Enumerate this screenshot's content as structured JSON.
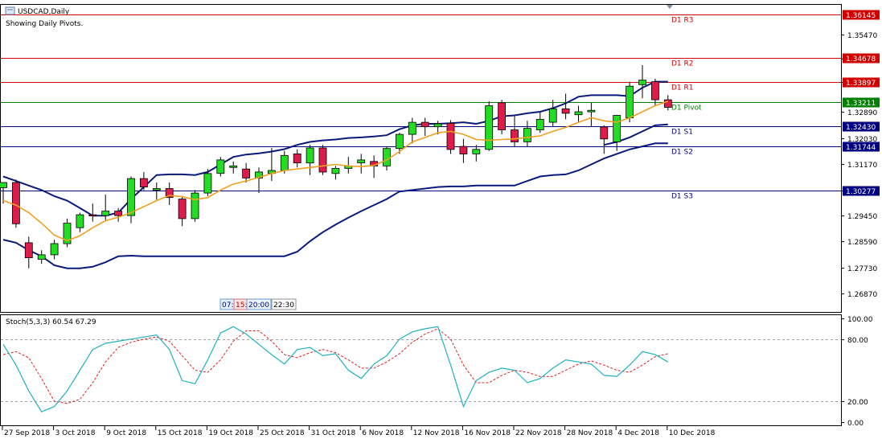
{
  "header": {
    "symbol_title": "USDCAD,Daily",
    "subtitle": "Showing Daily Pivots."
  },
  "time_tags": [
    "07:",
    "15:",
    "20:00",
    "22:30"
  ],
  "indicator": {
    "label": "Stoch(5,3,3) 60.54 67.29",
    "axis_labels": [
      "100.00",
      "80.00",
      "20.00",
      "0.00"
    ],
    "levels": [
      80,
      20
    ],
    "colors": {
      "main": "#20b2c0",
      "signal": "#e02020",
      "levels": "#a0a0a0"
    }
  },
  "chart_data": [
    {
      "type": "candlestick",
      "symbol": "USDCAD",
      "timeframe": "Daily",
      "ylim": [
        1.2625,
        1.3648
      ],
      "y_ticks": [
        "1.35470",
        "1.34670",
        "1.33897",
        "1.32890",
        "1.32030",
        "1.31170",
        "1.30277",
        "1.29450",
        "1.28590",
        "1.27730",
        "1.26870"
      ],
      "x_tick_labels": [
        "27 Sep 2018",
        "3 Oct 2018",
        "9 Oct 2018",
        "15 Oct 2018",
        "19 Oct 2018",
        "25 Oct 2018",
        "31 Oct 2018",
        "6 Nov 2018",
        "12 Nov 2018",
        "16 Nov 2018",
        "22 Nov 2018",
        "28 Nov 2018",
        "4 Dec 2018",
        "10 Dec 2018"
      ],
      "pivot_levels": [
        {
          "label": "D1 R3",
          "value": "1.36145",
          "color": "#d00000"
        },
        {
          "label": "D1 R2",
          "value": "1.34678",
          "color": "#d00000"
        },
        {
          "label": "D1 R1",
          "value": "1.33897",
          "color": "#d00000"
        },
        {
          "label": "D1 Pivot",
          "value": "1.33211",
          "color": "#008000"
        },
        {
          "label": "D1 S1",
          "value": "1.32430",
          "color": "#000080"
        },
        {
          "label": "D1 S2",
          "value": "1.31744",
          "color": "#000080"
        },
        {
          "label": "D1 S3",
          "value": "1.30277",
          "color": "#000080"
        }
      ],
      "candles": [
        [
          1.3038,
          1.3055,
          1.2985,
          1.3055
        ],
        [
          1.3055,
          1.3065,
          1.2905,
          1.2918
        ],
        [
          1.2855,
          1.2875,
          1.277,
          1.2805
        ],
        [
          1.28,
          1.283,
          1.2785,
          1.2815
        ],
        [
          1.2815,
          1.2865,
          1.28,
          1.2852
        ],
        [
          1.2852,
          1.2935,
          1.284,
          1.292
        ],
        [
          1.2905,
          1.2955,
          1.289,
          1.2948
        ],
        [
          1.2948,
          1.2985,
          1.2925,
          1.2945
        ],
        [
          1.2945,
          1.3015,
          1.293,
          1.296
        ],
        [
          1.296,
          1.297,
          1.2925,
          1.2945
        ],
        [
          1.2945,
          1.3075,
          1.292,
          1.3068
        ],
        [
          1.3068,
          1.309,
          1.303,
          1.304
        ],
        [
          1.303,
          1.3055,
          1.2998,
          1.3035
        ],
        [
          1.3035,
          1.3055,
          1.298,
          1.3005
        ],
        [
          1.3,
          1.301,
          1.291,
          1.2935
        ],
        [
          1.2935,
          1.303,
          1.2925,
          1.302
        ],
        [
          1.302,
          1.31,
          1.301,
          1.3085
        ],
        [
          1.3085,
          1.314,
          1.3075,
          1.313
        ],
        [
          1.3105,
          1.3125,
          1.3085,
          1.311
        ],
        [
          1.31,
          1.312,
          1.3055,
          1.307
        ],
        [
          1.307,
          1.3105,
          1.302,
          1.309
        ],
        [
          1.3085,
          1.317,
          1.306,
          1.3095
        ],
        [
          1.3095,
          1.316,
          1.3085,
          1.3145
        ],
        [
          1.315,
          1.3165,
          1.3105,
          1.312
        ],
        [
          1.312,
          1.318,
          1.308,
          1.317
        ],
        [
          1.317,
          1.318,
          1.308,
          1.309
        ],
        [
          1.3085,
          1.311,
          1.3065,
          1.3102
        ],
        [
          1.3102,
          1.314,
          1.3085,
          1.311
        ],
        [
          1.312,
          1.315,
          1.3085,
          1.313
        ],
        [
          1.3125,
          1.3145,
          1.307,
          1.311
        ],
        [
          1.311,
          1.3175,
          1.3095,
          1.3168
        ],
        [
          1.3168,
          1.322,
          1.315,
          1.3215
        ],
        [
          1.3215,
          1.327,
          1.3185,
          1.3255
        ],
        [
          1.3255,
          1.327,
          1.321,
          1.324
        ],
        [
          1.324,
          1.326,
          1.3215,
          1.325
        ],
        [
          1.3252,
          1.3262,
          1.315,
          1.3165
        ],
        [
          1.3175,
          1.32,
          1.312,
          1.315
        ],
        [
          1.315,
          1.318,
          1.3125,
          1.3165
        ],
        [
          1.3165,
          1.3325,
          1.316,
          1.331
        ],
        [
          1.332,
          1.333,
          1.3215,
          1.323
        ],
        [
          1.323,
          1.3275,
          1.3175,
          1.319
        ],
        [
          1.319,
          1.326,
          1.3175,
          1.3235
        ],
        [
          1.323,
          1.329,
          1.322,
          1.3265
        ],
        [
          1.3255,
          1.333,
          1.324,
          1.33
        ],
        [
          1.33,
          1.335,
          1.3265,
          1.3285
        ],
        [
          1.328,
          1.331,
          1.3255,
          1.329
        ],
        [
          1.329,
          1.332,
          1.324,
          1.3295
        ],
        [
          1.324,
          1.3245,
          1.315,
          1.32
        ],
        [
          1.319,
          1.328,
          1.316,
          1.3278
        ],
        [
          1.327,
          1.339,
          1.3255,
          1.3375
        ],
        [
          1.338,
          1.3445,
          1.3335,
          1.3395
        ],
        [
          1.339,
          1.34,
          1.331,
          1.333
        ],
        [
          1.333,
          1.3345,
          1.3295,
          1.3305
        ]
      ],
      "ma": [
        1.2995,
        1.298,
        1.2955,
        1.292,
        1.288,
        1.2862,
        1.2878,
        1.2905,
        1.2928,
        1.294,
        1.2955,
        1.2975,
        1.2995,
        1.3012,
        1.3008,
        1.2998,
        1.3005,
        1.303,
        1.305,
        1.306,
        1.3072,
        1.3085,
        1.3095,
        1.31,
        1.3105,
        1.311,
        1.3115,
        1.311,
        1.3108,
        1.3112,
        1.313,
        1.3158,
        1.319,
        1.3205,
        1.322,
        1.3225,
        1.3215,
        1.3198,
        1.3195,
        1.3198,
        1.32,
        1.3205,
        1.321,
        1.3225,
        1.3238,
        1.3255,
        1.327,
        1.326,
        1.3255,
        1.327,
        1.329,
        1.331,
        1.3325
      ],
      "bb_upper": [
        1.3075,
        1.306,
        1.3045,
        1.303,
        1.301,
        1.2995,
        1.297,
        1.2945,
        1.2945,
        1.2955,
        1.3,
        1.304,
        1.308,
        1.3082,
        1.3082,
        1.308,
        1.309,
        1.3115,
        1.314,
        1.3148,
        1.3152,
        1.3158,
        1.3166,
        1.318,
        1.319,
        1.3195,
        1.3198,
        1.3203,
        1.3205,
        1.3208,
        1.3212,
        1.3232,
        1.3245,
        1.325,
        1.325,
        1.3252,
        1.3255,
        1.325,
        1.326,
        1.3275,
        1.3278,
        1.3285,
        1.329,
        1.3302,
        1.3318,
        1.334,
        1.3345,
        1.3345,
        1.3345,
        1.3342,
        1.337,
        1.339,
        1.339
      ],
      "bb_lower": [
        1.2865,
        1.2855,
        1.283,
        1.281,
        1.278,
        1.277,
        1.277,
        1.2775,
        1.279,
        1.281,
        1.2812,
        1.281,
        1.281,
        1.281,
        1.281,
        1.281,
        1.281,
        1.281,
        1.281,
        1.281,
        1.281,
        1.281,
        1.281,
        1.2825,
        1.286,
        1.289,
        1.2915,
        1.2938,
        1.296,
        1.298,
        1.3,
        1.3025,
        1.303,
        1.3035,
        1.304,
        1.3042,
        1.3042,
        1.3045,
        1.3045,
        1.3045,
        1.3045,
        1.306,
        1.3075,
        1.308,
        1.3082,
        1.3095,
        1.3115,
        1.3135,
        1.315,
        1.3165,
        1.3175,
        1.3185,
        1.3185
      ],
      "bb_mid": [
        null,
        null,
        null,
        null,
        null,
        null,
        null,
        null,
        null,
        null,
        null,
        null,
        null,
        null,
        null,
        null,
        null,
        null,
        null,
        null,
        null,
        null,
        null,
        null,
        null,
        null,
        null,
        null,
        null,
        null,
        null,
        null,
        null,
        null,
        null,
        null,
        null,
        null,
        null,
        null,
        null,
        null,
        null,
        null,
        null,
        null,
        null,
        1.318,
        1.319,
        1.3205,
        1.3225,
        1.3245,
        1.3248
      ]
    },
    {
      "type": "line",
      "name": "Stoch(5,3,3)",
      "ylim": [
        0,
        100
      ],
      "series": [
        {
          "values": [
            75,
            55,
            30,
            10,
            15,
            30,
            50,
            70,
            76,
            78,
            80,
            82,
            84,
            70,
            40,
            37,
            60,
            86,
            92,
            85,
            75,
            65,
            56,
            70,
            72,
            64,
            66,
            50,
            42,
            56,
            64,
            80,
            87,
            90,
            92,
            55,
            15,
            40,
            48,
            52,
            50,
            38,
            42,
            52,
            60,
            58,
            56,
            45,
            44,
            55,
            68,
            65,
            58
          ]
        },
        {
          "values": [
            65,
            68,
            62,
            42,
            20,
            18,
            22,
            38,
            58,
            72,
            77,
            80,
            82,
            78,
            64,
            50,
            48,
            60,
            78,
            88,
            88,
            78,
            65,
            62,
            67,
            70,
            67,
            60,
            52,
            52,
            58,
            66,
            77,
            85,
            90,
            80,
            55,
            38,
            38,
            45,
            50,
            48,
            44,
            44,
            50,
            56,
            59,
            55,
            50,
            48,
            55,
            63,
            66
          ]
        }
      ]
    }
  ]
}
